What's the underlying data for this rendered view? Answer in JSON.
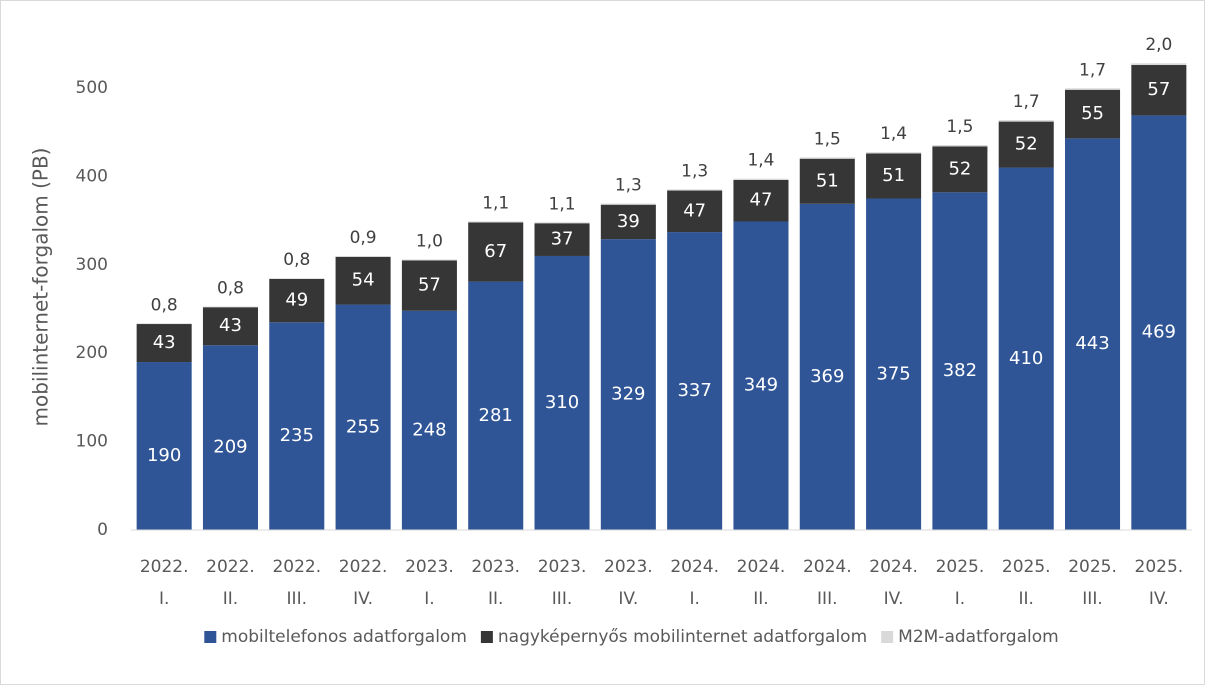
{
  "chart_data": {
    "type": "stacked_bar",
    "y_axis_label": "mobilinternet-forgalom  (PB)",
    "categories": [
      [
        "2022.",
        "I."
      ],
      [
        "2022.",
        "II."
      ],
      [
        "2022.",
        "III."
      ],
      [
        "2022.",
        "IV."
      ],
      [
        "2023.",
        "I."
      ],
      [
        "2023.",
        "II."
      ],
      [
        "2023.",
        "III."
      ],
      [
        "2023.",
        "IV."
      ],
      [
        "2024.",
        "I."
      ],
      [
        "2024.",
        "II."
      ],
      [
        "2024.",
        "III."
      ],
      [
        "2024.",
        "IV."
      ],
      [
        "2025.",
        "I."
      ],
      [
        "2025.",
        "II."
      ],
      [
        "2025.",
        "III."
      ],
      [
        "2025.",
        "IV."
      ]
    ],
    "series": [
      {
        "name": "mobiltelefonos adatforgalom",
        "color": "#2f5597",
        "values": [
          190,
          209,
          235,
          255,
          248,
          281,
          310,
          329,
          337,
          349,
          369,
          375,
          382,
          410,
          443,
          469
        ]
      },
      {
        "name": "nagyképernyős mobilinternet adatforgalom",
        "color": "#363636",
        "values": [
          43,
          43,
          49,
          54,
          57,
          67,
          37,
          39,
          47,
          47,
          51,
          51,
          52,
          52,
          55,
          57
        ]
      },
      {
        "name": "M2M-adatforgalom",
        "color": "#d9d9d9",
        "values": [
          0.8,
          0.8,
          0.8,
          0.9,
          1.0,
          1.1,
          1.1,
          1.3,
          1.3,
          1.4,
          1.5,
          1.4,
          1.5,
          1.7,
          1.7,
          2.0
        ],
        "value_labels": [
          "0,8",
          "0,8",
          "0,8",
          "0,9",
          "1,0",
          "1,1",
          "1,1",
          "1,3",
          "1,3",
          "1,4",
          "1,5",
          "1,4",
          "1,5",
          "1,7",
          "1,7",
          "2,0"
        ]
      }
    ],
    "ylim": [
      0,
      550
    ],
    "yticks": [
      0,
      100,
      200,
      300,
      400,
      500
    ],
    "grid": false,
    "legend": "bottom"
  }
}
